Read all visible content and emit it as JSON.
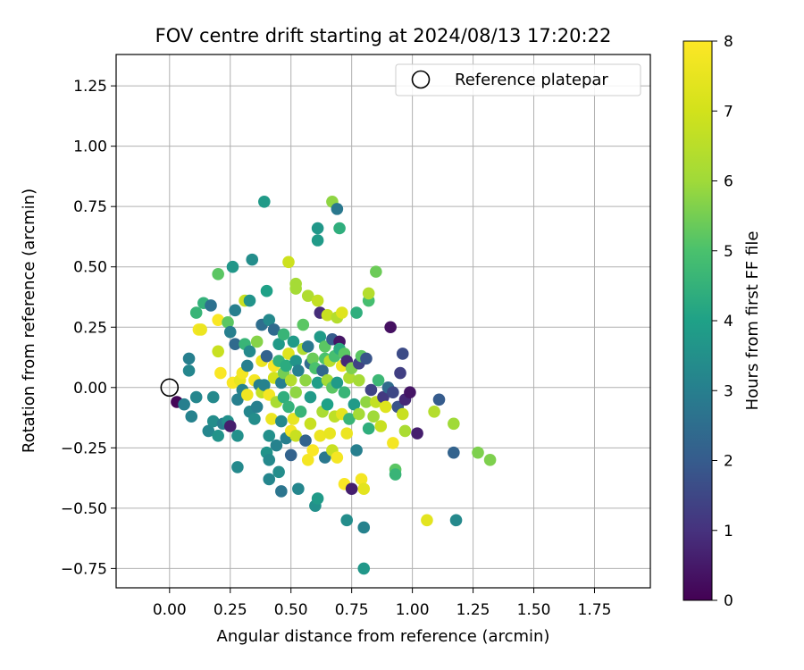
{
  "chart_data": {
    "type": "scatter",
    "title": "FOV centre drift starting at 2024/08/13 17:20:22",
    "xlabel": "Angular distance from reference (arcmin)",
    "ylabel": "Rotation from reference (arcmin)",
    "xlim": [
      -0.22,
      1.98
    ],
    "ylim": [
      -0.83,
      1.38
    ],
    "xticks": [
      "0.00",
      "0.25",
      "0.50",
      "0.75",
      "1.00",
      "1.25",
      "1.50",
      "1.75"
    ],
    "yticks": [
      "−0.75",
      "−0.50",
      "−0.25",
      "0.00",
      "0.25",
      "0.50",
      "0.75",
      "1.00",
      "1.25"
    ],
    "grid": true,
    "legend": {
      "position": "top-right",
      "entries": [
        "Reference platepar"
      ]
    },
    "colorbar": {
      "label": "Hours from first FF file",
      "range": [
        0,
        8
      ],
      "ticks": [
        "0",
        "1",
        "2",
        "3",
        "4",
        "5",
        "6",
        "7",
        "8"
      ],
      "colormap": "viridis"
    },
    "reference_point": {
      "x": 0.0,
      "y": 0.0
    },
    "series": [
      {
        "points": [
          [
            0.03,
            -0.06,
            0.1
          ],
          [
            0.06,
            -0.07,
            3.0
          ],
          [
            0.08,
            0.07,
            3.2
          ],
          [
            0.08,
            0.12,
            3.0
          ],
          [
            0.09,
            -0.12,
            3.1
          ],
          [
            0.11,
            0.31,
            4.6
          ],
          [
            0.12,
            0.24,
            7.8
          ],
          [
            0.11,
            -0.04,
            3.2
          ],
          [
            0.13,
            0.24,
            7.6
          ],
          [
            0.14,
            0.35,
            4.5
          ],
          [
            0.16,
            -0.18,
            3.2
          ],
          [
            0.17,
            0.34,
            2.6
          ],
          [
            0.18,
            -0.04,
            3.3
          ],
          [
            0.18,
            -0.14,
            3.4
          ],
          [
            0.2,
            0.28,
            7.9
          ],
          [
            0.2,
            0.15,
            6.8
          ],
          [
            0.2,
            0.47,
            5.2
          ],
          [
            0.2,
            -0.2,
            3.6
          ],
          [
            0.21,
            0.06,
            7.9
          ],
          [
            0.22,
            -0.15,
            3.0
          ],
          [
            0.24,
            -0.14,
            3.5
          ],
          [
            0.25,
            -0.16,
            0.6
          ],
          [
            0.24,
            0.27,
            5.2
          ],
          [
            0.25,
            0.23,
            3.0
          ],
          [
            0.26,
            0.5,
            3.7
          ],
          [
            0.26,
            0.02,
            7.9
          ],
          [
            0.27,
            0.18,
            2.4
          ],
          [
            0.28,
            -0.05,
            3.0
          ],
          [
            0.27,
            0.32,
            3.0
          ],
          [
            0.28,
            -0.33,
            3.3
          ],
          [
            0.28,
            -0.2,
            3.5
          ],
          [
            0.29,
            0.03,
            7.5
          ],
          [
            0.3,
            0.06,
            7.8
          ],
          [
            0.3,
            -0.01,
            3.1
          ],
          [
            0.31,
            0.18,
            4.6
          ],
          [
            0.31,
            0.36,
            6.8
          ],
          [
            0.32,
            -0.03,
            7.7
          ],
          [
            0.33,
            0.15,
            3.3
          ],
          [
            0.32,
            0.09,
            3.0
          ],
          [
            0.33,
            0.36,
            3.6
          ],
          [
            0.33,
            -0.1,
            3.2
          ],
          [
            0.34,
            0.53,
            3.4
          ],
          [
            0.35,
            0.03,
            7.8
          ],
          [
            0.35,
            -0.13,
            3.4
          ],
          [
            0.36,
            0.19,
            5.7
          ],
          [
            0.36,
            -0.08,
            3.0
          ],
          [
            0.37,
            0.01,
            3.0
          ],
          [
            0.38,
            0.11,
            7.6
          ],
          [
            0.38,
            -0.02,
            6.7
          ],
          [
            0.38,
            0.26,
            2.5
          ],
          [
            0.39,
            0.77,
            3.8
          ],
          [
            0.39,
            0.01,
            3.1
          ],
          [
            0.4,
            -0.27,
            3.6
          ],
          [
            0.4,
            0.13,
            2.2
          ],
          [
            0.4,
            0.4,
            4.0
          ],
          [
            0.41,
            0.28,
            3.3
          ],
          [
            0.41,
            -0.03,
            7.8
          ],
          [
            0.41,
            -0.2,
            3.5
          ],
          [
            0.41,
            -0.3,
            3.3
          ],
          [
            0.41,
            -0.38,
            3.2
          ],
          [
            0.42,
            -0.13,
            7.6
          ],
          [
            0.43,
            0.09,
            7.9
          ],
          [
            0.43,
            0.04,
            7.0
          ],
          [
            0.43,
            0.24,
            2.4
          ],
          [
            0.44,
            -0.24,
            3.1
          ],
          [
            0.44,
            -0.06,
            6.2
          ],
          [
            0.45,
            0.18,
            3.8
          ],
          [
            0.45,
            0.11,
            4.5
          ],
          [
            0.45,
            -0.35,
            3.4
          ],
          [
            0.46,
            -0.14,
            3.3
          ],
          [
            0.46,
            0.02,
            3.0
          ],
          [
            0.47,
            0.22,
            4.6
          ],
          [
            0.47,
            0.06,
            5.5
          ],
          [
            0.47,
            -0.04,
            4.4
          ],
          [
            0.46,
            -0.43,
            2.7
          ],
          [
            0.48,
            0.09,
            4.3
          ],
          [
            0.48,
            -0.21,
            3.0
          ],
          [
            0.49,
            0.52,
            6.9
          ],
          [
            0.49,
            0.14,
            7.3
          ],
          [
            0.49,
            -0.08,
            4.5
          ],
          [
            0.5,
            0.03,
            6.4
          ],
          [
            0.5,
            -0.28,
            2.2
          ],
          [
            0.5,
            -0.18,
            7.8
          ],
          [
            0.51,
            0.19,
            3.8
          ],
          [
            0.51,
            -0.13,
            7.5
          ],
          [
            0.52,
            0.43,
            6.1
          ],
          [
            0.52,
            0.41,
            6.1
          ],
          [
            0.52,
            0.11,
            3.6
          ],
          [
            0.52,
            -0.02,
            5.8
          ],
          [
            0.52,
            -0.2,
            6.8
          ],
          [
            0.53,
            -0.42,
            3.2
          ],
          [
            0.53,
            0.07,
            3.0
          ],
          [
            0.54,
            -0.1,
            4.6
          ],
          [
            0.55,
            0.26,
            5.2
          ],
          [
            0.55,
            0.16,
            6.3
          ],
          [
            0.56,
            0.03,
            5.8
          ],
          [
            0.56,
            -0.22,
            2.2
          ],
          [
            0.57,
            0.17,
            2.8
          ],
          [
            0.57,
            0.38,
            6.3
          ],
          [
            0.57,
            -0.3,
            7.8
          ],
          [
            0.58,
            0.1,
            2.5
          ],
          [
            0.58,
            -0.04,
            3.8
          ],
          [
            0.58,
            -0.15,
            6.8
          ],
          [
            0.59,
            0.12,
            5.4
          ],
          [
            0.59,
            -0.26,
            7.9
          ],
          [
            0.6,
            -0.49,
            3.5
          ],
          [
            0.6,
            0.08,
            5.0
          ],
          [
            0.61,
            0.61,
            3.8
          ],
          [
            0.61,
            0.66,
            3.7
          ],
          [
            0.61,
            0.36,
            6.7
          ],
          [
            0.61,
            0.02,
            3.9
          ],
          [
            0.61,
            -0.46,
            3.8
          ],
          [
            0.62,
            0.31,
            0.9
          ],
          [
            0.62,
            0.21,
            3.8
          ],
          [
            0.62,
            -0.2,
            7.6
          ],
          [
            0.63,
            0.07,
            2.3
          ],
          [
            0.63,
            -0.1,
            6.2
          ],
          [
            0.64,
            0.17,
            5.2
          ],
          [
            0.64,
            0.12,
            5.0
          ],
          [
            0.64,
            -0.29,
            2.8
          ],
          [
            0.65,
            0.3,
            6.8
          ],
          [
            0.65,
            0.03,
            6.1
          ],
          [
            0.65,
            -0.07,
            4.0
          ],
          [
            0.66,
            0.11,
            6.5
          ],
          [
            0.66,
            -0.19,
            7.5
          ],
          [
            0.67,
            0.77,
            5.8
          ],
          [
            0.67,
            0.2,
            2.0
          ],
          [
            0.67,
            0.0,
            5.2
          ],
          [
            0.67,
            -0.26,
            6.8
          ],
          [
            0.68,
            0.13,
            4.9
          ],
          [
            0.68,
            -0.12,
            6.6
          ],
          [
            0.69,
            0.74,
            2.8
          ],
          [
            0.69,
            0.29,
            6.4
          ],
          [
            0.69,
            0.02,
            3.8
          ],
          [
            0.69,
            -0.29,
            7.8
          ],
          [
            0.7,
            0.66,
            4.4
          ],
          [
            0.7,
            0.19,
            0.4
          ],
          [
            0.7,
            0.16,
            4.3
          ],
          [
            0.71,
            0.31,
            7.3
          ],
          [
            0.71,
            0.09,
            7.8
          ],
          [
            0.71,
            -0.11,
            7.4
          ],
          [
            0.72,
            -0.4,
            7.9
          ],
          [
            0.72,
            0.14,
            5.2
          ],
          [
            0.72,
            -0.02,
            4.6
          ],
          [
            0.73,
            -0.55,
            3.4
          ],
          [
            0.73,
            0.11,
            0.8
          ],
          [
            0.73,
            -0.19,
            7.6
          ],
          [
            0.74,
            0.04,
            6.3
          ],
          [
            0.74,
            -0.13,
            4.6
          ],
          [
            0.75,
            -0.42,
            0.6
          ],
          [
            0.75,
            0.08,
            5.6
          ],
          [
            0.76,
            -0.07,
            3.8
          ],
          [
            0.77,
            0.31,
            4.4
          ],
          [
            0.77,
            -0.26,
            3.0
          ],
          [
            0.78,
            0.03,
            6.1
          ],
          [
            0.78,
            0.1,
            1.4
          ],
          [
            0.78,
            -0.11,
            6.1
          ],
          [
            0.79,
            0.13,
            5.2
          ],
          [
            0.79,
            -0.38,
            7.8
          ],
          [
            0.8,
            -0.58,
            3.1
          ],
          [
            0.8,
            -0.75,
            3.7
          ],
          [
            0.8,
            -0.42,
            7.4
          ],
          [
            0.81,
            0.12,
            1.8
          ],
          [
            0.81,
            -0.06,
            5.8
          ],
          [
            0.82,
            0.36,
            4.9
          ],
          [
            0.82,
            0.39,
            6.4
          ],
          [
            0.82,
            -0.17,
            4.4
          ],
          [
            0.83,
            -0.01,
            1.4
          ],
          [
            0.84,
            -0.12,
            6.0
          ],
          [
            0.85,
            0.48,
            5.4
          ],
          [
            0.85,
            -0.06,
            6.7
          ],
          [
            0.86,
            0.03,
            4.7
          ],
          [
            0.87,
            -0.16,
            6.8
          ],
          [
            0.88,
            -0.04,
            1.2
          ],
          [
            0.89,
            -0.08,
            7.3
          ],
          [
            0.9,
            0.0,
            2.4
          ],
          [
            0.91,
            0.25,
            0.3
          ],
          [
            0.92,
            -0.23,
            7.8
          ],
          [
            0.92,
            -0.02,
            1.5
          ],
          [
            0.93,
            -0.34,
            5.2
          ],
          [
            0.93,
            -0.36,
            4.6
          ],
          [
            0.94,
            -0.08,
            1.8
          ],
          [
            0.95,
            0.06,
            1.3
          ],
          [
            0.96,
            0.14,
            1.6
          ],
          [
            0.96,
            -0.11,
            6.8
          ],
          [
            0.97,
            -0.05,
            0.8
          ],
          [
            0.97,
            -0.18,
            6.2
          ],
          [
            0.99,
            -0.02,
            0.4
          ],
          [
            1.02,
            -0.19,
            0.6
          ],
          [
            1.06,
            -0.55,
            7.4
          ],
          [
            1.09,
            -0.1,
            6.4
          ],
          [
            1.11,
            -0.05,
            2.0
          ],
          [
            1.17,
            -0.15,
            6.0
          ],
          [
            1.17,
            -0.27,
            2.2
          ],
          [
            1.18,
            -0.55,
            3.3
          ],
          [
            1.27,
            -0.27,
            5.6
          ],
          [
            1.32,
            -0.3,
            5.6
          ]
        ]
      }
    ]
  }
}
